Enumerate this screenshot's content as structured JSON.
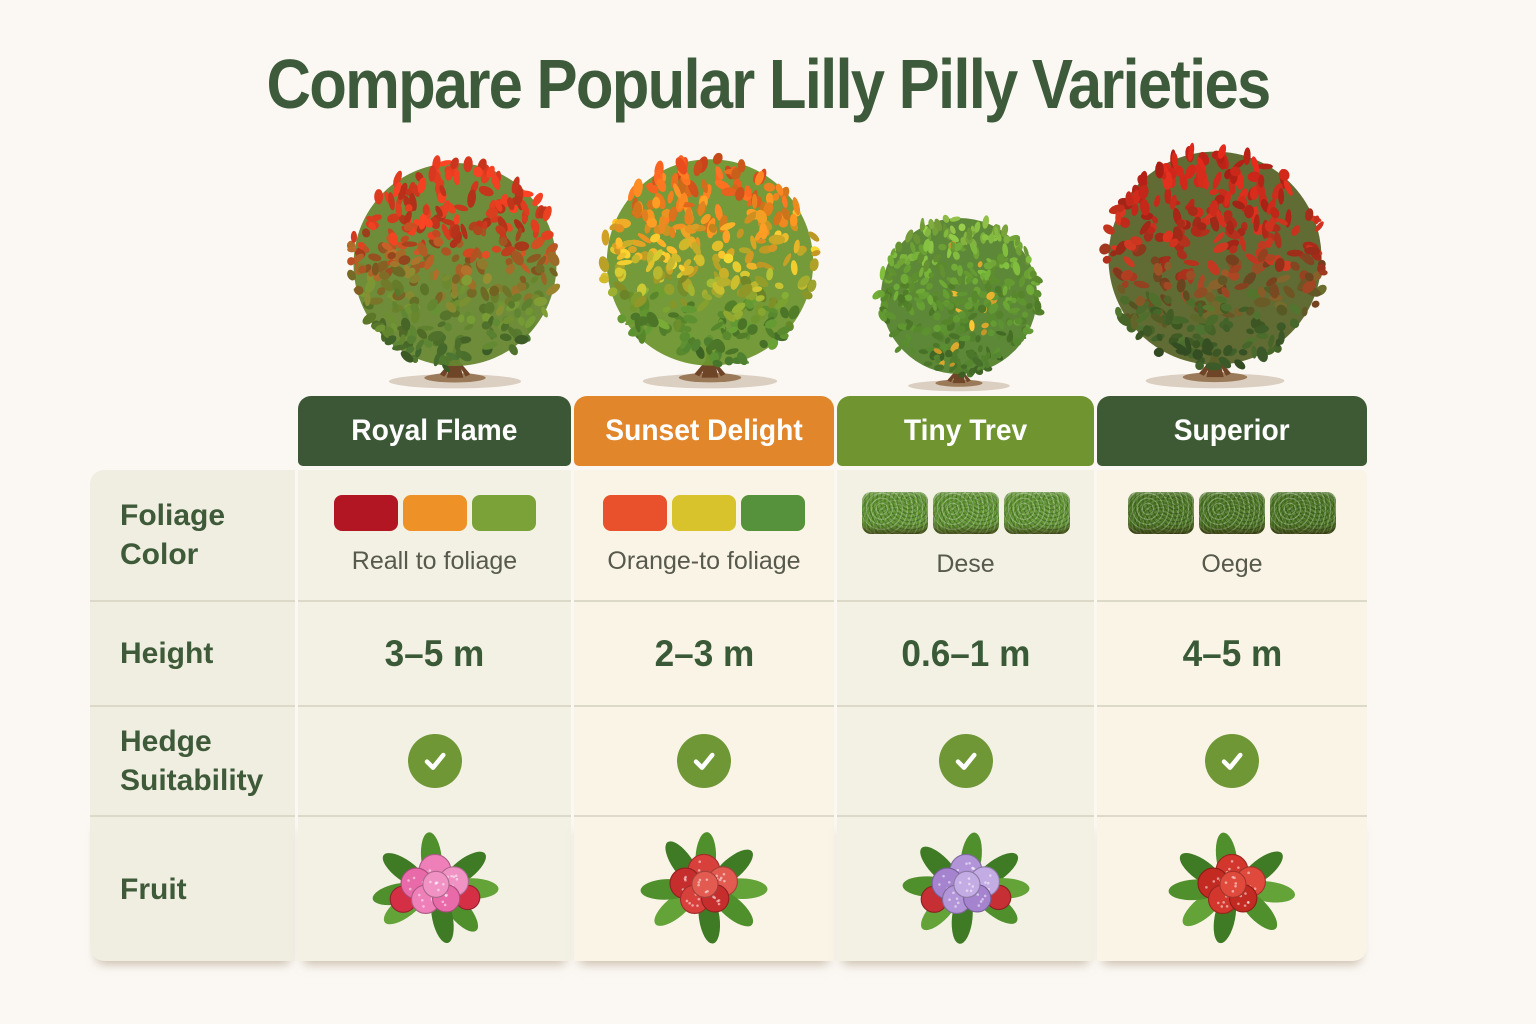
{
  "title": "Compare Popular Lilly Pilly Varieties",
  "colors": {
    "page_bg": "#fbf8f4",
    "title_text": "#3d5b3b",
    "row_label_bg": "#efeee1",
    "cell_bg_odd": "#f2f1e4",
    "cell_bg_even": "#f9f4e6",
    "check_circle": "#6f9735"
  },
  "chart_data": {
    "type": "table",
    "title": "Compare Popular Lilly Pilly Varieties",
    "columns": [
      "Royal Flame",
      "Sunset Delight",
      "Tiny Trev",
      "Superior"
    ],
    "rows": [
      {
        "label": "Foliage Color",
        "values": [
          "Reall to foliage",
          "Orange-to foliage",
          "Dese",
          "Oege"
        ]
      },
      {
        "label": "Height",
        "values": [
          "3–5 m",
          "2–3 m",
          "0.6–1 m",
          "4–5 m"
        ]
      },
      {
        "label": "Hedge Suitability",
        "values": [
          true,
          true,
          true,
          true
        ]
      },
      {
        "label": "Fruit",
        "values": [
          "pink flower-berry cluster",
          "red berry cluster",
          "purple berry cluster",
          "red berry cluster"
        ]
      }
    ]
  },
  "row_labels": {
    "foliage": "Foliage Color",
    "height": "Height",
    "hedge": "Hedge Suitability",
    "fruit": "Fruit"
  },
  "columns": [
    {
      "name": "Royal Flame",
      "header_color": "#3c5736",
      "bush_stops": [
        "#e03a20",
        "#cf3a1d",
        "#6d8c2f",
        "#3f662c"
      ],
      "foliage_style": "flat",
      "foliage_swatches": [
        "#b11622",
        "#ee9227",
        "#7ba238"
      ],
      "foliage_caption": "Reall to foliage",
      "height": "3–5 m",
      "hedge_suitable": true,
      "fruit": {
        "berries": [
          "#ee7fb8",
          "#e86aa9",
          "#f092c4"
        ],
        "accent": "#d42f44",
        "leaves": [
          "#4f8f2c",
          "#3f7a24",
          "#63a338"
        ]
      }
    },
    {
      "name": "Sunset Delight",
      "header_color": "#e2862b",
      "bush_stops": [
        "#ef4f1f",
        "#f0881f",
        "#ddc12d",
        "#5e8f2e",
        "#47742b"
      ],
      "foliage_style": "flat",
      "foliage_swatches": [
        "#e8512b",
        "#d8c32d",
        "#55923b"
      ],
      "foliage_caption": "Orange-to foliage",
      "height": "2–3 m",
      "hedge_suitable": true,
      "fruit": {
        "berries": [
          "#d8403c",
          "#c62e2e",
          "#e25a50"
        ],
        "accent": "",
        "leaves": [
          "#4f8f2c",
          "#3f7a24",
          "#63a338"
        ]
      }
    },
    {
      "name": "Tiny Trev",
      "header_color": "#70942f",
      "bush_stops": [
        "#8cba45",
        "#6ba234",
        "#55862c",
        "#47702a"
      ],
      "bush_speck": "#e0aa2d",
      "foliage_style": "hedge",
      "hedge_swatch_color": "#5e9230",
      "foliage_caption": "Dese",
      "height": "0.6–1 m",
      "hedge_suitable": true,
      "fruit": {
        "berries": [
          "#b294d9",
          "#a583cf",
          "#c3abe4"
        ],
        "accent": "#c62f33",
        "leaves": [
          "#4f8f2c",
          "#3f7a24",
          "#63a338"
        ]
      }
    },
    {
      "name": "Superior",
      "header_color": "#3d5a35",
      "bush_stops": [
        "#cc2418",
        "#c32a1a",
        "#b5341e",
        "#4c6b2a",
        "#3a5828"
      ],
      "foliage_style": "hedge",
      "hedge_swatch_color": "#4a7522",
      "foliage_caption": "Oege",
      "height": "4–5 m",
      "hedge_suitable": true,
      "fruit": {
        "berries": [
          "#d3362c",
          "#c22a22",
          "#e04a3c"
        ],
        "accent": "",
        "leaves": [
          "#4f8f2c",
          "#3f7a24",
          "#63a338"
        ]
      }
    }
  ]
}
